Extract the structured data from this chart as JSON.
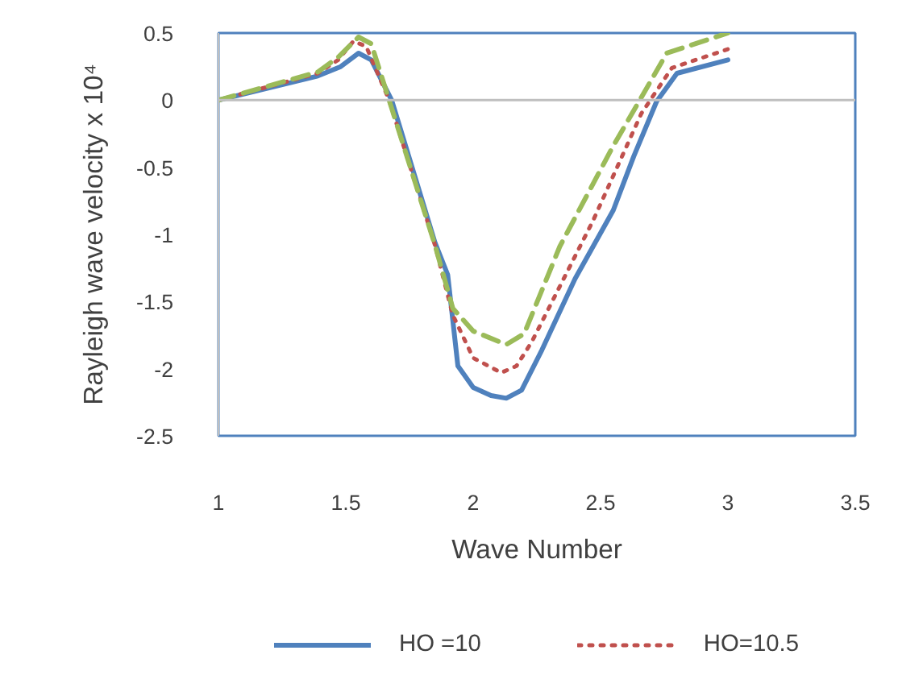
{
  "chart_data": {
    "type": "line",
    "xlabel": "Wave Number",
    "ylabel": "Rayleigh wave velocity x 10⁴",
    "xlim": [
      1,
      3.5
    ],
    "xticks": [
      1,
      1.5,
      2,
      2.5,
      3,
      3.5
    ],
    "ylim": [
      -2.5,
      0.5
    ],
    "yticks": [
      0.5,
      0,
      -0.5,
      -1,
      -1.5,
      -2,
      -2.5
    ],
    "legend": "bottom",
    "grid": false,
    "ref_lines": [
      {
        "axis": "y",
        "value": 0,
        "color": "#bfbfbf"
      }
    ],
    "series": [
      {
        "name": "HO =10",
        "color": "#4f81bd",
        "line_style": "solid",
        "x": [
          1,
          1.39,
          1.48,
          1.55,
          1.6,
          1.68,
          1.85,
          1.9,
          1.94,
          2.0,
          2.07,
          2.13,
          2.19,
          2.27,
          2.4,
          2.55,
          2.63,
          2.72,
          2.8,
          3.0
        ],
        "values": [
          0,
          0.18,
          0.25,
          0.35,
          0.3,
          0,
          -1.06,
          -1.3,
          -1.98,
          -2.14,
          -2.2,
          -2.22,
          -2.16,
          -1.86,
          -1.33,
          -0.82,
          -0.42,
          -0.01,
          0.2,
          0.3
        ]
      },
      {
        "name": "HO=10.5",
        "color": "#c0504d",
        "line_style": "dotted",
        "x": [
          1,
          1.39,
          1.47,
          1.53,
          1.58,
          1.67,
          1.85,
          1.92,
          2.0,
          2.11,
          2.17,
          2.23,
          2.47,
          2.66,
          2.78,
          3.0
        ],
        "values": [
          0,
          0.2,
          0.3,
          0.44,
          0.4,
          0,
          -1.08,
          -1.6,
          -1.92,
          -2.03,
          -1.98,
          -1.8,
          -0.9,
          -0.1,
          0.24,
          0.38
        ]
      },
      {
        "color": "#9bbb59",
        "line_style": "dashed",
        "x": [
          1,
          1.39,
          1.47,
          1.55,
          1.6,
          1.67,
          1.85,
          1.92,
          2.0,
          2.13,
          2.2,
          2.34,
          2.55,
          2.66,
          2.76,
          3.0
        ],
        "values": [
          0,
          0.21,
          0.32,
          0.47,
          0.42,
          0,
          -1.08,
          -1.55,
          -1.72,
          -1.82,
          -1.74,
          -1.09,
          -0.34,
          0.02,
          0.35,
          0.5
        ]
      }
    ]
  }
}
